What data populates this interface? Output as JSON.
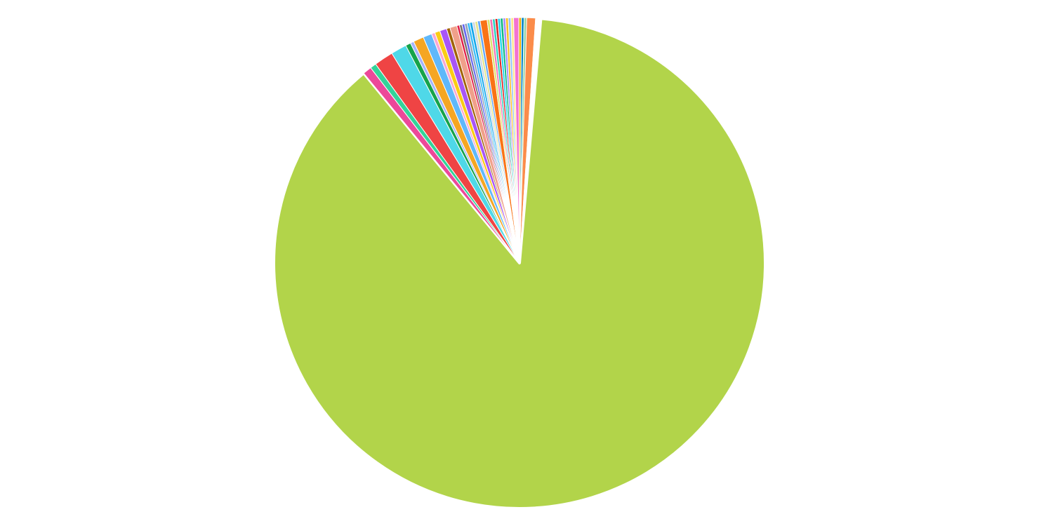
{
  "chart_data": {
    "type": "pie",
    "title": "",
    "start": "top",
    "direction": "clockwise",
    "slices": [
      {
        "value": 76.5,
        "color": "#B2D44A"
      },
      {
        "value": 0.5,
        "color": "#EC4899"
      },
      {
        "value": 0.35,
        "color": "#34D399"
      },
      {
        "value": 1.1,
        "color": "#EF4444"
      },
      {
        "value": 0.9,
        "color": "#4FD8E8"
      },
      {
        "value": 0.3,
        "color": "#16A34A"
      },
      {
        "value": 0.2,
        "color": "#A5B4FC"
      },
      {
        "value": 0.6,
        "color": "#F5A623"
      },
      {
        "value": 0.5,
        "color": "#60B8FA"
      },
      {
        "value": 0.2,
        "color": "#F9A8D4"
      },
      {
        "value": 0.3,
        "color": "#FACC15"
      },
      {
        "value": 0.4,
        "color": "#A855F7"
      },
      {
        "value": 0.2,
        "color": "#A16207"
      },
      {
        "value": 0.4,
        "color": "#F0A08A"
      },
      {
        "value": 0.15,
        "color": "#E11D48"
      },
      {
        "value": 0.15,
        "color": "#78716C"
      },
      {
        "value": 0.15,
        "color": "#6366F1"
      },
      {
        "value": 0.15,
        "color": "#94A3B8"
      },
      {
        "value": 0.15,
        "color": "#38BDF8"
      },
      {
        "value": 0.15,
        "color": "#0EA5E9"
      },
      {
        "value": 0.15,
        "color": "#CBD5E1"
      },
      {
        "value": 0.15,
        "color": "#E5E58A"
      },
      {
        "value": 0.15,
        "color": "#60A5FA"
      },
      {
        "value": 0.4,
        "color": "#F97316"
      },
      {
        "value": 0.15,
        "color": "#D9E36A"
      },
      {
        "value": 0.15,
        "color": "#F472B6"
      },
      {
        "value": 0.15,
        "color": "#2DD4BF"
      },
      {
        "value": 0.15,
        "color": "#DC2626"
      },
      {
        "value": 0.15,
        "color": "#22D3EE"
      },
      {
        "value": 0.15,
        "color": "#10B981"
      },
      {
        "value": 0.15,
        "color": "#A78BFA"
      },
      {
        "value": 0.15,
        "color": "#FBBF24"
      },
      {
        "value": 0.15,
        "color": "#93C5FD"
      },
      {
        "value": 0.15,
        "color": "#FDE68A"
      },
      {
        "value": 0.3,
        "color": "#F472D0"
      },
      {
        "value": 0.15,
        "color": "#EAB308"
      },
      {
        "value": 0.15,
        "color": "#0284C7"
      },
      {
        "value": 0.15,
        "color": "#94D3A2"
      },
      {
        "value": 0.5,
        "color": "#FB8C4A"
      },
      {
        "value": 0.3,
        "color": "#FFFFFF"
      }
    ]
  }
}
